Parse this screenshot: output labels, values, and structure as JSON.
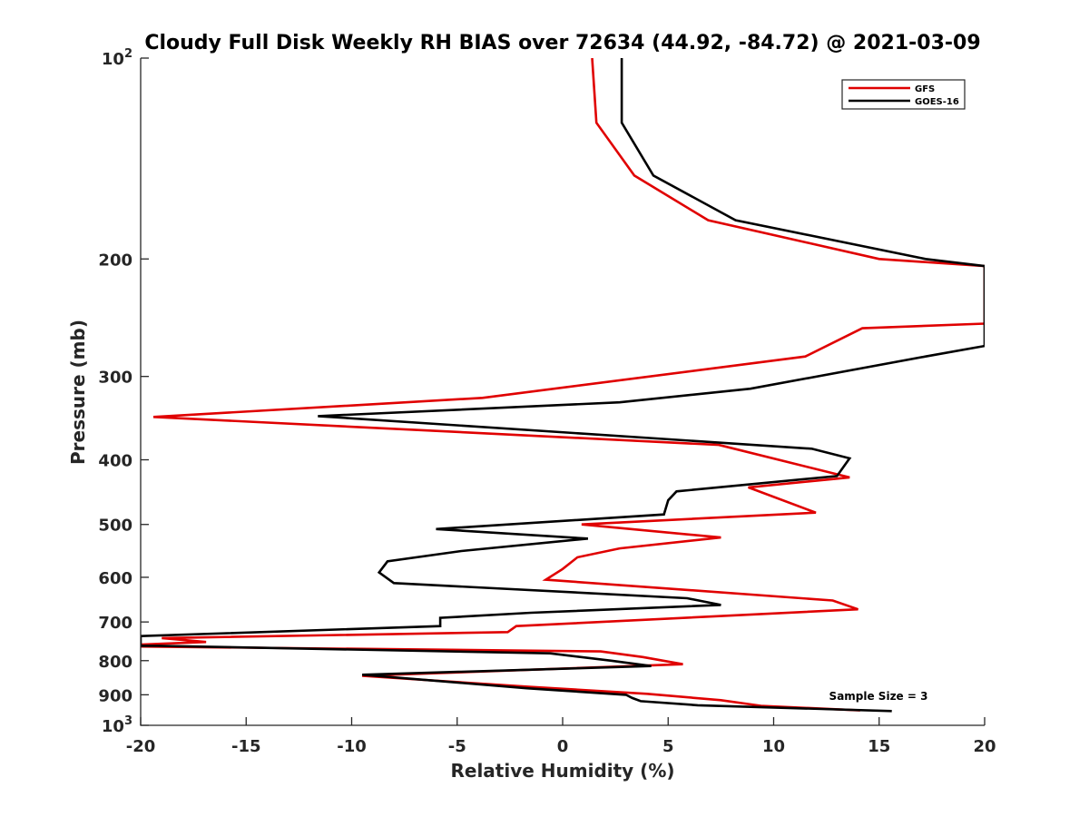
{
  "chart_data": {
    "type": "line",
    "title": "Cloudy Full Disk Weekly RH BIAS over 72634 (44.92, -84.72) @ 2021-03-09",
    "xlabel": "Relative Humidity (%)",
    "ylabel": "Pressure (mb)",
    "xlim": [
      -20,
      20
    ],
    "ylim": [
      100,
      1000
    ],
    "y_scale": "log",
    "y_reversed": true,
    "grid": false,
    "legend_position": "top-right",
    "x_ticks": [
      -20,
      -15,
      -10,
      -5,
      0,
      5,
      10,
      15,
      20
    ],
    "x_tick_labels": [
      "-20",
      "-15",
      "-10",
      "-5",
      "0",
      "5",
      "10",
      "15",
      "20"
    ],
    "y_ticks": [
      {
        "value": 100,
        "label": "10",
        "sup": "2"
      },
      {
        "value": 200,
        "label": "200"
      },
      {
        "value": 300,
        "label": "300"
      },
      {
        "value": 400,
        "label": "400"
      },
      {
        "value": 500,
        "label": "500"
      },
      {
        "value": 600,
        "label": "600"
      },
      {
        "value": 700,
        "label": "700"
      },
      {
        "value": 800,
        "label": "800"
      },
      {
        "value": 900,
        "label": "900"
      },
      {
        "value": 1000,
        "label": "10",
        "sup": "3"
      }
    ],
    "annotation": "Sample Size = 3",
    "series": [
      {
        "name": "GFS",
        "color": "#e00000",
        "points": [
          [
            1.4,
            100
          ],
          [
            1.6,
            125
          ],
          [
            3.4,
            150
          ],
          [
            6.9,
            175
          ],
          [
            15,
            200
          ],
          [
            20,
            205
          ],
          [
            20,
            250
          ],
          [
            14.2,
            254
          ],
          [
            11.5,
            280
          ],
          [
            -3.8,
            323
          ],
          [
            -19.4,
            345
          ],
          [
            7.4,
            380
          ],
          [
            13.6,
            425
          ],
          [
            8.8,
            440
          ],
          [
            12,
            480
          ],
          [
            0.9,
            500
          ],
          [
            7.5,
            523
          ],
          [
            2.7,
            543
          ],
          [
            0.7,
            560
          ],
          [
            0,
            583
          ],
          [
            -0.8,
            605
          ],
          [
            12.8,
            650
          ],
          [
            14,
            670
          ],
          [
            -2.2,
            710
          ],
          [
            -2.6,
            725
          ],
          [
            -19,
            740
          ],
          [
            -16.9,
            750
          ],
          [
            -20,
            757
          ],
          [
            -20,
            762
          ],
          [
            1.8,
            775
          ],
          [
            3.8,
            790
          ],
          [
            5.7,
            810
          ],
          [
            -9.5,
            843
          ],
          [
            -1.5,
            876
          ],
          [
            4,
            897
          ],
          [
            7.5,
            917
          ],
          [
            9.4,
            935
          ],
          [
            14.1,
            950
          ]
        ]
      },
      {
        "name": "GOES-16",
        "color": "#000000",
        "points": [
          [
            2.8,
            100
          ],
          [
            2.8,
            125
          ],
          [
            4.3,
            150
          ],
          [
            8.2,
            175
          ],
          [
            17.2,
            200
          ],
          [
            20,
            205
          ],
          [
            20,
            270
          ],
          [
            17.2,
            280
          ],
          [
            8.9,
            313
          ],
          [
            2.7,
            328
          ],
          [
            -11.6,
            344
          ],
          [
            11.8,
            385
          ],
          [
            13.6,
            398
          ],
          [
            13,
            423
          ],
          [
            5.4,
            446
          ],
          [
            5,
            460
          ],
          [
            4.8,
            483
          ],
          [
            -6,
            508
          ],
          [
            1.2,
            525
          ],
          [
            -4.8,
            548
          ],
          [
            -8.3,
            568
          ],
          [
            -8.7,
            590
          ],
          [
            -8,
            612
          ],
          [
            5.9,
            645
          ],
          [
            7.5,
            660
          ],
          [
            -1.5,
            678
          ],
          [
            -5.8,
            690
          ],
          [
            -5.8,
            710
          ],
          [
            -20,
            735
          ],
          [
            -20,
            740
          ],
          [
            -20,
            760
          ],
          [
            -19.2,
            760
          ],
          [
            -0.6,
            780
          ],
          [
            2.3,
            800
          ],
          [
            4.2,
            815
          ],
          [
            -9.5,
            840
          ],
          [
            -1.7,
            880
          ],
          [
            3,
            900
          ],
          [
            3.3,
            910
          ],
          [
            3.7,
            920
          ],
          [
            6.4,
            933
          ],
          [
            15.6,
            952
          ]
        ]
      }
    ]
  }
}
